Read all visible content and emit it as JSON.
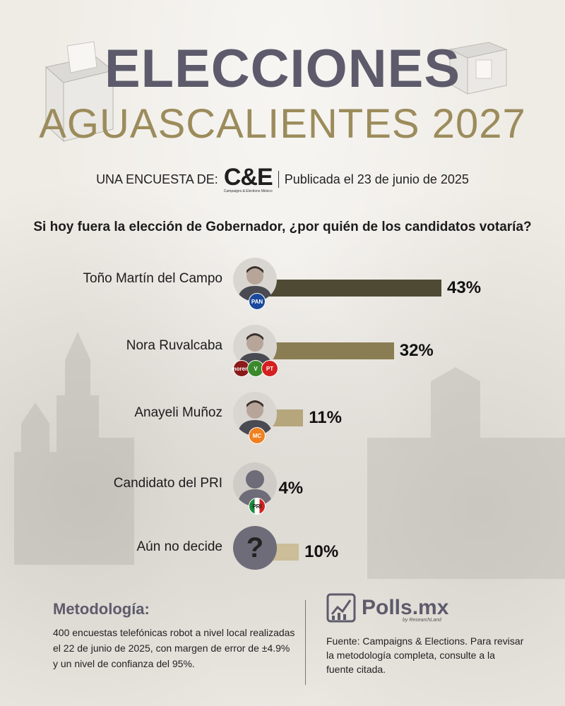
{
  "header": {
    "title": "ELECCIONES",
    "subtitle": "AGUASCALIENTES 2027",
    "survey_prefix": "UNA ENCUESTA DE:",
    "pollster_logo": "C&E",
    "pollster_logo_sub": "Campaigns & Elections México",
    "published": "Publicada el 23 de junio de 2025"
  },
  "question": "Si hoy fuera la elección de Gobernador, ¿por quién de los candidatos votaría?",
  "chart_data": {
    "type": "bar",
    "orientation": "horizontal",
    "categories": [
      "Toño Martín del Campo",
      "Nora Ruvalcaba",
      "Anayeli Muñoz",
      "Candidato del PRI",
      "Aún no decide"
    ],
    "values": [
      43,
      32,
      11,
      4,
      10
    ],
    "value_labels": [
      "43%",
      "32%",
      "11%",
      "4%",
      "10%"
    ],
    "party_badges": [
      [
        "PAN"
      ],
      [
        "morena",
        "VERDE",
        "PT"
      ],
      [
        "MC"
      ],
      [
        "PRI"
      ],
      []
    ],
    "bar_colors": [
      "#4e4a34",
      "#8a7d53",
      "#b5a67c",
      "#cfc29c",
      "#cbbe98"
    ],
    "xlim": [
      0,
      43
    ]
  },
  "methodology": {
    "title": "Metodología:",
    "text": "400 encuestas telefónicas robot a nivel local realizadas el 22 de junio de 2025, con margen de error de ±4.9% y un nivel de confianza del 95%."
  },
  "footer": {
    "brand": "Polls.mx",
    "brand_sub": "by ResearchLand",
    "source": "Fuente: Campaigns & Elections. Para revisar la metodología completa, consulte a la fuente citada."
  },
  "colors": {
    "title": "#5d5b6b",
    "subtitle": "#9c8c5c"
  }
}
